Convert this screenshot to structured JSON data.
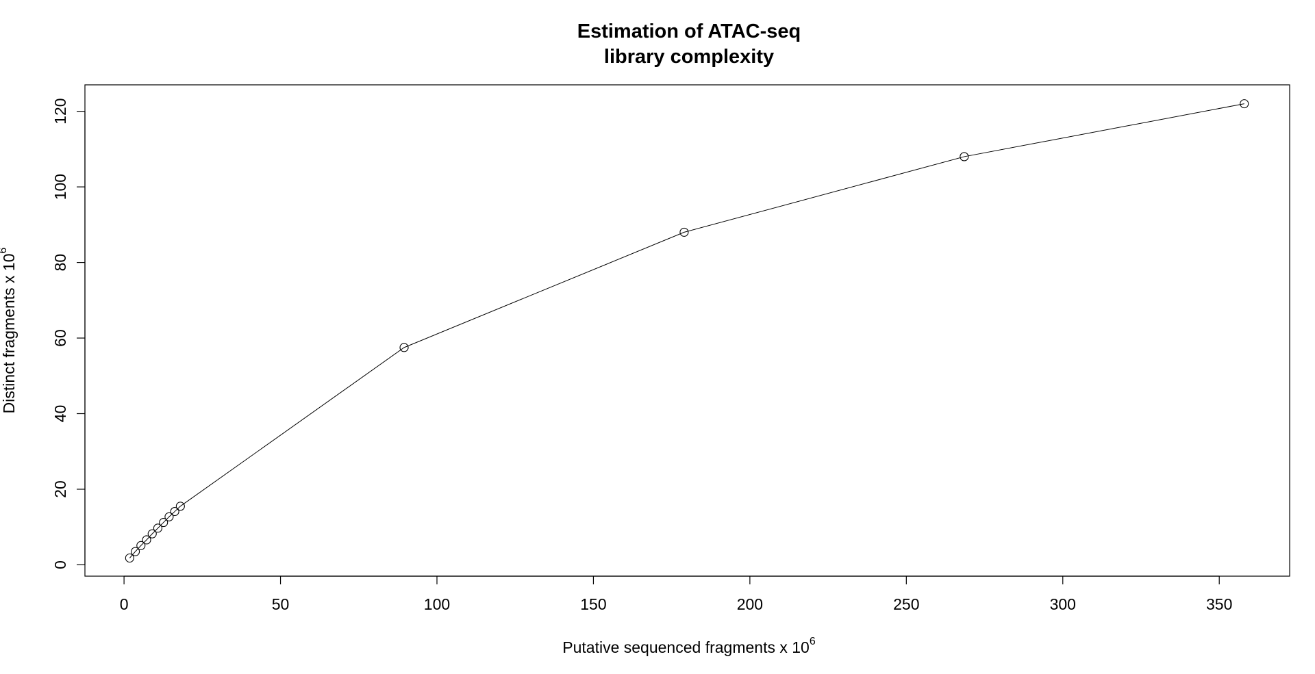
{
  "chart_data": {
    "type": "line",
    "title_line1": "Estimation of ATAC-seq",
    "title_line2": "library complexity",
    "xlabel": "Putative sequenced fragments x 10",
    "xlabel_exponent": "6",
    "ylabel": "Distinct fragments x 10",
    "ylabel_exponent": "6",
    "xlim": [
      -12.5,
      372.5
    ],
    "ylim": [
      -3,
      127
    ],
    "x_ticks": [
      0,
      50,
      100,
      150,
      200,
      250,
      300,
      350
    ],
    "y_ticks": [
      0,
      20,
      40,
      60,
      80,
      100,
      120
    ],
    "x_tick_labels": [
      "0",
      "50",
      "100",
      "150",
      "200",
      "250",
      "300",
      "350"
    ],
    "y_tick_labels": [
      "0",
      "20",
      "40",
      "60",
      "80",
      "100",
      "120"
    ],
    "grid": false,
    "markers": "open-circle",
    "series": [
      {
        "x": [
          1.8,
          3.6,
          5.4,
          7.2,
          9.0,
          10.8,
          12.6,
          14.4,
          16.2,
          18.0,
          89.5,
          179.0,
          268.5,
          358.0
        ],
        "y": [
          1.8,
          3.5,
          5.1,
          6.6,
          8.2,
          9.7,
          11.2,
          12.7,
          14.1,
          15.5,
          57.5,
          88.0,
          108.0,
          122.0
        ]
      }
    ]
  }
}
